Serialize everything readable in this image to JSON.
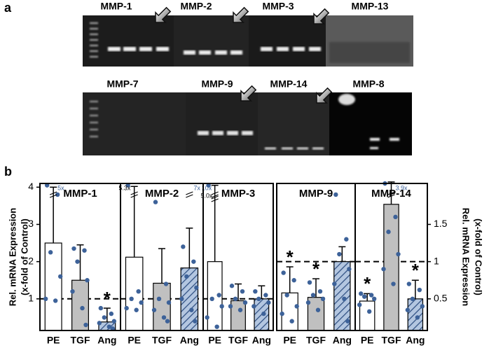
{
  "panel_labels": [
    "a",
    "b"
  ],
  "gels": [
    [
      "MMP-1",
      "MMP-2",
      "MMP-3",
      "MMP-13"
    ],
    [
      "MMP-7",
      "MMP-9",
      "MMP-14",
      "MMP-8"
    ]
  ],
  "chart_data": [
    {
      "type": "bar",
      "title": "MMP-1",
      "categories": [
        "PE",
        "TGF",
        "Ang"
      ],
      "values": [
        2.5,
        1.5,
        0.38
      ],
      "errors": [
        1.5,
        0.95,
        0.37
      ],
      "points": [
        [
          4.05,
          3.8,
          2.25,
          1.6,
          1.0,
          0.95
        ],
        [
          2.35,
          2.3,
          2.0,
          1.5,
          1.2,
          0.75,
          0.3
        ],
        [
          0.75,
          0.6,
          0.5,
          0.4,
          0.35,
          0.25,
          0.2
        ]
      ],
      "ylim": [
        0.15,
        4.1
      ],
      "yticks": [
        1,
        2,
        3,
        4
      ],
      "ylabel": [
        "Rel. mRNA Expression",
        "(x-fold of Control)"
      ],
      "refline": 1,
      "colors": [
        "#ffffff",
        "#c0c0c0",
        "#a9bfdc"
      ],
      "hatched": [
        false,
        false,
        true
      ],
      "point_color": "#3d6299",
      "marker": "*",
      "significant": [
        false,
        false,
        true
      ],
      "annotations": [
        {
          "category": 0,
          "text": "5x",
          "color": "#3d6299"
        }
      ]
    },
    {
      "type": "bar",
      "title": "MMP-2",
      "categories": [
        "PE",
        "TGF",
        "Ang"
      ],
      "values": [
        2.12,
        1.42,
        1.83
      ],
      "errors": [
        1.9,
        0.93,
        1.07
      ],
      "points": [
        [
          4.05,
          1.2,
          1.0,
          0.9,
          0.75,
          0.7
        ],
        [
          3.6,
          1.4,
          1.0,
          0.9,
          0.7,
          0.5,
          0.4
        ],
        [
          2.4,
          2.0,
          1.6,
          1.3,
          1.0,
          0.7,
          0.4
        ]
      ],
      "ylim": [
        0.15,
        4.1
      ],
      "refline": 1,
      "colors": [
        "#ffffff",
        "#c0c0c0",
        "#a9bfdc"
      ],
      "hatched": [
        false,
        false,
        true
      ],
      "point_color": "#3d6299",
      "marker": "*",
      "significant": [
        false,
        false,
        false
      ],
      "annotations": [
        {
          "category": 0,
          "text": "5.3x",
          "color": "#000000"
        },
        {
          "category": 2,
          "text": "7x",
          "color": "#3d6299"
        }
      ]
    },
    {
      "type": "bar",
      "title": "MMP-3",
      "categories": [
        "PE",
        "TGF",
        "Ang"
      ],
      "values": [
        2.0,
        0.95,
        1.0
      ],
      "errors": [
        2.05,
        0.45,
        0.35
      ],
      "points": [
        [
          4.05,
          1.1,
          1.0,
          0.8,
          0.5,
          0.25
        ],
        [
          1.35,
          1.2,
          1.0,
          0.9,
          0.8,
          0.7
        ],
        [
          1.2,
          1.1,
          1.0,
          0.9,
          0.8,
          0.6
        ]
      ],
      "ylim": [
        0.15,
        4.1
      ],
      "refline": 1,
      "colors": [
        "#ffffff",
        "#c0c0c0",
        "#a9bfdc"
      ],
      "hatched": [
        false,
        false,
        true
      ],
      "point_color": "#3d6299",
      "marker": "*",
      "significant": [
        false,
        false,
        false
      ],
      "annotations": [
        {
          "category": 0,
          "text": "10x",
          "color": "#3d6299"
        },
        {
          "category": 0,
          "text": "5.0x",
          "color": "#000000"
        }
      ]
    },
    {
      "type": "bar",
      "title": "MMP-9",
      "categories": [
        "PE",
        "TGF",
        "Ang"
      ],
      "values": [
        0.58,
        0.52,
        1.0
      ],
      "errors": [
        0.35,
        0.25,
        0.2
      ],
      "points": [
        [
          0.85,
          0.75,
          0.55,
          0.4,
          0.3,
          0.2
        ],
        [
          0.72,
          0.6,
          0.55,
          0.5,
          0.45,
          0.35
        ],
        [
          1.9,
          1.3,
          1.1,
          0.9,
          0.7,
          0.5,
          0.2
        ]
      ],
      "ylim": [
        0.075,
        2.05
      ],
      "refline": 1,
      "colors": [
        "#ffffff",
        "#c0c0c0",
        "#a9bfdc"
      ],
      "hatched": [
        false,
        false,
        true
      ],
      "point_color": "#3d6299",
      "marker": "*",
      "significant": [
        true,
        true,
        false
      ],
      "annotations": []
    },
    {
      "type": "bar",
      "title": "MMP-14",
      "categories": [
        "PE",
        "TGF",
        "Ang"
      ],
      "values": [
        0.47,
        1.77,
        0.5
      ],
      "errors": [
        0.1,
        0.3,
        0.25
      ],
      "points": [
        [
          0.57,
          0.55,
          0.53,
          0.5,
          0.42,
          0.33
        ],
        [
          2.05,
          1.6,
          1.4,
          1.1,
          0.9,
          0.7
        ],
        [
          0.7,
          0.62,
          0.5,
          0.4,
          0.35,
          0.25
        ]
      ],
      "ylim": [
        0.075,
        2.05
      ],
      "yticks": [
        0.5,
        1,
        1.5
      ],
      "ylabel": [
        "Rel. mRNA Expression",
        "(x-fold of Control)"
      ],
      "refline": 1,
      "colors": [
        "#ffffff",
        "#c0c0c0",
        "#a9bfdc"
      ],
      "hatched": [
        false,
        false,
        true
      ],
      "point_color": "#3d6299",
      "marker": "*",
      "significant": [
        true,
        false,
        true
      ],
      "annotations": [
        {
          "category": 1,
          "text": "3.9x",
          "color": "#3d6299"
        }
      ]
    }
  ]
}
